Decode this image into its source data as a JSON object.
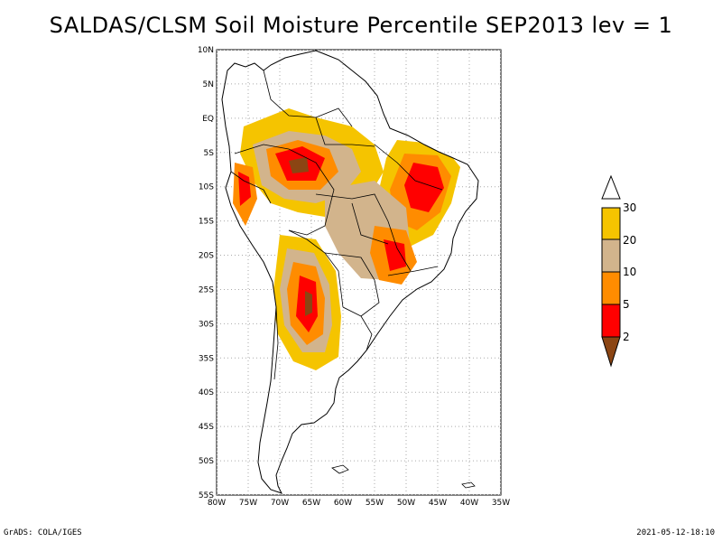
{
  "title": "SALDAS/CLSM Soil Moisture Percentile SEP2013 lev = 1",
  "map": {
    "lat_ticks": [
      "10N",
      "5N",
      "EQ",
      "5S",
      "10S",
      "15S",
      "20S",
      "25S",
      "30S",
      "35S",
      "40S",
      "45S",
      "50S",
      "55S"
    ],
    "lon_ticks": [
      "80W",
      "75W",
      "70W",
      "65W",
      "60W",
      "55W",
      "50W",
      "45W",
      "40W",
      "35W"
    ],
    "lat_range": [
      10,
      -55
    ],
    "lon_range": [
      -80,
      -35
    ],
    "gridlines": true
  },
  "legend": {
    "labels": [
      "30",
      "20",
      "10",
      "5",
      "2"
    ],
    "colors": {
      "above30": "#ffffff",
      "20_30": "#f5c400",
      "10_20": "#d2b48c",
      "5_10": "#ff8c00",
      "2_5": "#ff0000",
      "below2": "#8b4513"
    }
  },
  "footer": {
    "left": "GrADS: COLA/IGES",
    "right": "2021-05-12-18:10"
  }
}
